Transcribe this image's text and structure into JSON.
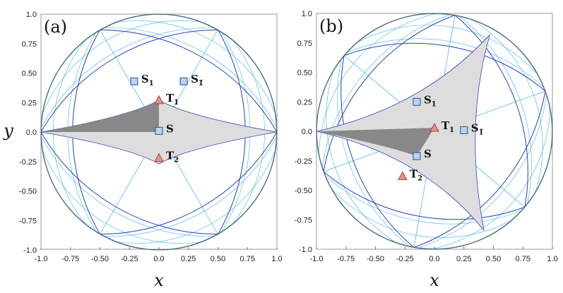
{
  "figure": {
    "y_axis_title": "y",
    "panels": [
      {
        "id": "a",
        "label": "(a)",
        "x_axis_title": "x",
        "x_ticks": [
          "-1.0",
          "-0.75",
          "-0.50",
          "-0.25",
          "0.0",
          "0.25",
          "0.50",
          "0.75",
          "1.0"
        ],
        "y_ticks": [
          "1.0",
          "0.75",
          "0.50",
          "0.25",
          "0.0",
          "-0.25",
          "-0.50",
          "-0.75",
          "-1.0"
        ],
        "points": [
          {
            "label": "S",
            "sub": "",
            "kind": "square",
            "x": 0.0,
            "y": 0.01
          },
          {
            "label": "S",
            "sub": "1",
            "kind": "square",
            "x": -0.21,
            "y": 0.43
          },
          {
            "label": "S",
            "sub": "1̄",
            "kind": "square",
            "x": 0.21,
            "y": 0.43
          },
          {
            "label": "T",
            "sub": "1",
            "kind": "triangle",
            "x": 0.0,
            "y": 0.27
          },
          {
            "label": "T",
            "sub": "2",
            "kind": "triangle",
            "x": 0.0,
            "y": -0.22
          }
        ]
      },
      {
        "id": "b",
        "label": "(b)",
        "x_axis_title": "x",
        "x_ticks": [
          "-1.0",
          "-0.75",
          "-0.50",
          "-0.25",
          "0.0",
          "0.25",
          "0.50",
          "0.75",
          "1.0"
        ],
        "y_ticks": [
          "1.0",
          "0.75",
          "0.50",
          "0.25",
          "0.0",
          "-0.25",
          "-0.50",
          "-0.75",
          "-1.0"
        ],
        "points": [
          {
            "label": "S",
            "sub": "",
            "kind": "square",
            "x": -0.15,
            "y": -0.21
          },
          {
            "label": "S",
            "sub": "1",
            "kind": "square",
            "x": -0.15,
            "y": 0.25
          },
          {
            "label": "S",
            "sub": "1̄",
            "kind": "square",
            "x": 0.25,
            "y": 0.01
          },
          {
            "label": "T",
            "sub": "1",
            "kind": "triangle",
            "x": 0.0,
            "y": 0.03
          },
          {
            "label": "T",
            "sub": "2",
            "kind": "triangle",
            "x": -0.27,
            "y": -0.38
          }
        ]
      }
    ]
  },
  "colors": {
    "tessellation": "#3fb2e6",
    "highlight_curve": "#3344bb",
    "fundamental_light": "#dddddd",
    "fundamental_dark": "#888888",
    "square_fill": "#bcd3ec",
    "square_stroke": "#2a4f8f",
    "triangle_fill": "#e7908d",
    "triangle_stroke": "#a8433e"
  }
}
